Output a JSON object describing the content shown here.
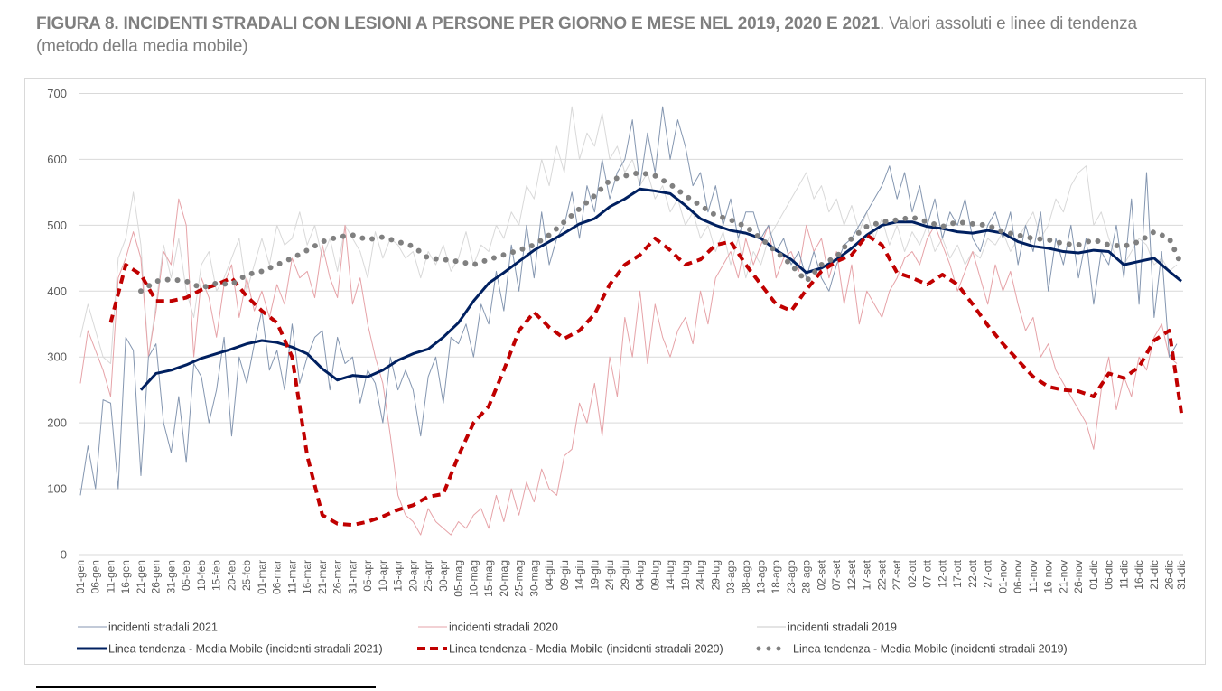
{
  "figure": {
    "title_bold": "FIGURA 8. INCIDENTI STRADALI CON LESIONI A PERSONE PER GIORNO E MESE NEL 2019, 2020 E 2021",
    "title_rest": ". Valori assoluti e linee di tendenza (metodo della media mobile)"
  },
  "chart_data": {
    "type": "line",
    "title": "Incidenti stradali con lesioni a persone per giorno e mese nel 2019, 2020 e 2021",
    "xlabel": "",
    "ylabel": "",
    "ylim": [
      0,
      700
    ],
    "yticks": [
      0,
      100,
      200,
      300,
      400,
      500,
      600,
      700
    ],
    "grid": true,
    "legend_position": "bottom",
    "x_step_days": 5,
    "categories": [
      "01-gen",
      "06-gen",
      "11-gen",
      "16-gen",
      "21-gen",
      "26-gen",
      "31-gen",
      "05-feb",
      "10-feb",
      "15-feb",
      "20-feb",
      "25-feb",
      "01-mar",
      "06-mar",
      "11-mar",
      "16-mar",
      "21-mar",
      "26-mar",
      "31-mar",
      "05-apr",
      "10-apr",
      "15-apr",
      "20-apr",
      "25-apr",
      "30-apr",
      "05-mag",
      "10-mag",
      "15-mag",
      "20-mag",
      "25-mag",
      "30-mag",
      "04-giu",
      "09-giu",
      "14-giu",
      "19-giu",
      "24-giu",
      "29-giu",
      "04-lug",
      "09-lug",
      "14-lug",
      "19-lug",
      "24-lug",
      "29-lug",
      "03-ago",
      "08-ago",
      "13-ago",
      "18-ago",
      "23-ago",
      "28-ago",
      "02-set",
      "07-set",
      "12-set",
      "17-set",
      "22-set",
      "27-set",
      "02-ott",
      "07-ott",
      "12-ott",
      "17-ott",
      "22-ott",
      "27-ott",
      "01-nov",
      "06-nov",
      "11-nov",
      "16-nov",
      "21-nov",
      "26-nov",
      "01-dic",
      "06-dic",
      "11-dic",
      "16-dic",
      "21-dic",
      "26-dic",
      "31-dic"
    ],
    "raw_step_days": 2.5,
    "series": [
      {
        "name": "incidenti stradali 2021",
        "kind": "raw",
        "color": "#8496b0",
        "values": [
          90,
          165,
          100,
          235,
          230,
          100,
          330,
          310,
          120,
          300,
          320,
          200,
          155,
          240,
          140,
          290,
          270,
          200,
          250,
          330,
          180,
          300,
          260,
          320,
          370,
          280,
          310,
          250,
          350,
          260,
          300,
          330,
          340,
          250,
          330,
          290,
          300,
          230,
          280,
          260,
          200,
          300,
          250,
          280,
          250,
          180,
          270,
          300,
          230,
          330,
          320,
          350,
          300,
          380,
          350,
          430,
          370,
          470,
          400,
          500,
          420,
          520,
          440,
          480,
          500,
          550,
          480,
          560,
          520,
          600,
          540,
          580,
          600,
          660,
          560,
          640,
          580,
          680,
          600,
          660,
          620,
          560,
          580,
          520,
          560,
          500,
          540,
          480,
          520,
          520,
          480,
          500,
          460,
          480,
          440,
          460,
          420,
          460,
          420,
          400,
          440,
          470,
          480,
          500,
          520,
          540,
          560,
          590,
          540,
          580,
          520,
          560,
          500,
          540,
          480,
          520,
          500,
          540,
          480,
          460,
          500,
          520,
          480,
          520,
          440,
          500,
          460,
          520,
          400,
          480,
          440,
          500,
          420,
          480,
          380,
          460,
          440,
          500,
          420,
          540,
          380,
          580,
          360,
          460,
          300,
          320
        ]
      },
      {
        "name": "incidenti stradali 2020",
        "kind": "raw",
        "color": "#e6a3a8",
        "values": [
          260,
          340,
          310,
          280,
          240,
          420,
          450,
          490,
          450,
          300,
          370,
          460,
          440,
          540,
          500,
          300,
          420,
          390,
          330,
          410,
          440,
          360,
          420,
          370,
          400,
          360,
          410,
          380,
          450,
          420,
          430,
          390,
          470,
          420,
          390,
          500,
          380,
          420,
          350,
          300,
          260,
          180,
          90,
          60,
          50,
          30,
          70,
          50,
          40,
          30,
          50,
          40,
          60,
          70,
          40,
          90,
          50,
          100,
          60,
          110,
          80,
          130,
          100,
          90,
          150,
          160,
          230,
          200,
          260,
          180,
          300,
          240,
          360,
          300,
          400,
          290,
          380,
          330,
          300,
          340,
          360,
          320,
          400,
          350,
          420,
          440,
          460,
          420,
          480,
          440,
          470,
          500,
          420,
          450,
          460,
          430,
          500,
          460,
          480,
          420,
          460,
          380,
          440,
          350,
          400,
          380,
          360,
          400,
          420,
          450,
          460,
          440,
          480,
          500,
          470,
          440,
          400,
          430,
          460,
          420,
          380,
          440,
          400,
          430,
          380,
          340,
          360,
          300,
          320,
          280,
          260,
          240,
          220,
          200,
          160,
          250,
          300,
          220,
          270,
          240,
          300,
          280,
          330,
          350,
          300,
          290
        ]
      },
      {
        "name": "incidenti  stradali 2019",
        "kind": "raw",
        "color": "#d9d9d9",
        "values": [
          330,
          380,
          340,
          300,
          290,
          450,
          480,
          550,
          470,
          300,
          380,
          470,
          420,
          480,
          400,
          360,
          440,
          460,
          400,
          420,
          450,
          480,
          400,
          440,
          480,
          440,
          500,
          470,
          480,
          520,
          470,
          500,
          450,
          480,
          430,
          500,
          480,
          460,
          420,
          490,
          450,
          480,
          470,
          450,
          460,
          420,
          460,
          440,
          470,
          430,
          450,
          490,
          440,
          470,
          460,
          500,
          480,
          520,
          500,
          560,
          540,
          600,
          560,
          620,
          580,
          680,
          600,
          640,
          620,
          670,
          600,
          620,
          580,
          600,
          560,
          580,
          540,
          560,
          520,
          540,
          500,
          520,
          480,
          500,
          460,
          490,
          440,
          480,
          420,
          460,
          440,
          480,
          500,
          520,
          540,
          560,
          580,
          540,
          560,
          520,
          540,
          500,
          530,
          490,
          520,
          480,
          510,
          470,
          500,
          460,
          490,
          470,
          500,
          460,
          480,
          450,
          470,
          440,
          460,
          450,
          480,
          470,
          490,
          460,
          480,
          500,
          520,
          480,
          500,
          540,
          520,
          560,
          580,
          590,
          500,
          520,
          480,
          450,
          440,
          460,
          480,
          470,
          440,
          450,
          430,
          440
        ]
      },
      {
        "name": "Linea tendenza - Media Mobile (incidenti stradali 2021)",
        "kind": "trend",
        "style": "solid",
        "color": "#002060",
        "start_index": 4,
        "values": [
          250,
          275,
          280,
          288,
          298,
          305,
          312,
          320,
          325,
          322,
          315,
          305,
          282,
          265,
          272,
          270,
          280,
          295,
          305,
          312,
          330,
          352,
          385,
          412,
          428,
          445,
          462,
          475,
          488,
          502,
          510,
          528,
          540,
          555,
          552,
          548,
          530,
          510,
          500,
          492,
          488,
          480,
          462,
          448,
          428,
          435,
          448,
          465,
          485,
          500,
          505,
          505,
          498,
          495,
          490,
          488,
          492,
          488,
          475,
          468,
          465,
          460,
          458,
          462,
          460,
          440,
          445,
          450,
          430,
          415
        ]
      },
      {
        "name": "Linea tendenza - Media Mobile (incidenti stradali 2020)",
        "kind": "trend",
        "style": "dashed",
        "color": "#c00000",
        "start_index": 2,
        "values": [
          352,
          440,
          425,
          385,
          385,
          390,
          402,
          410,
          420,
          392,
          370,
          352,
          300,
          150,
          60,
          47,
          45,
          50,
          58,
          68,
          75,
          88,
          92,
          150,
          200,
          225,
          280,
          340,
          368,
          345,
          328,
          340,
          365,
          410,
          440,
          455,
          480,
          462,
          440,
          448,
          470,
          475,
          440,
          410,
          380,
          370,
          402,
          430,
          445,
          455,
          485,
          470,
          428,
          420,
          410,
          425,
          410,
          380,
          348,
          320,
          295,
          270,
          255,
          250,
          248,
          240,
          275,
          268,
          285,
          325,
          340,
          215
        ]
      },
      {
        "name": "Linea tendenza - Media Mobile (incidenti stradali 2019)",
        "kind": "trend",
        "style": "dotted",
        "color": "#808080",
        "start_index": 4,
        "values": [
          400,
          415,
          418,
          415,
          405,
          412,
          410,
          425,
          430,
          440,
          450,
          462,
          475,
          482,
          485,
          478,
          482,
          475,
          468,
          450,
          448,
          445,
          440,
          448,
          455,
          462,
          470,
          485,
          505,
          525,
          545,
          568,
          575,
          580,
          575,
          562,
          545,
          530,
          515,
          508,
          498,
          480,
          460,
          440,
          415,
          440,
          452,
          480,
          498,
          505,
          508,
          512,
          505,
          498,
          505,
          502,
          500,
          490,
          485,
          480,
          478,
          472,
          470,
          478,
          470,
          468,
          475,
          490,
          480,
          440
        ]
      }
    ],
    "legend": [
      {
        "label": "incidenti stradali 2021",
        "series": 0
      },
      {
        "label": "incidenti stradali 2020",
        "series": 1
      },
      {
        "label": "incidenti  stradali 2019",
        "series": 2
      },
      {
        "label": "Linea tendenza - Media Mobile (incidenti stradali 2021)",
        "series": 3
      },
      {
        "label": "Linea tendenza - Media Mobile (incidenti stradali 2020)",
        "series": 4
      },
      {
        "label": "Linea tendenza - Media Mobile (incidenti stradali 2019)",
        "series": 5
      }
    ]
  }
}
